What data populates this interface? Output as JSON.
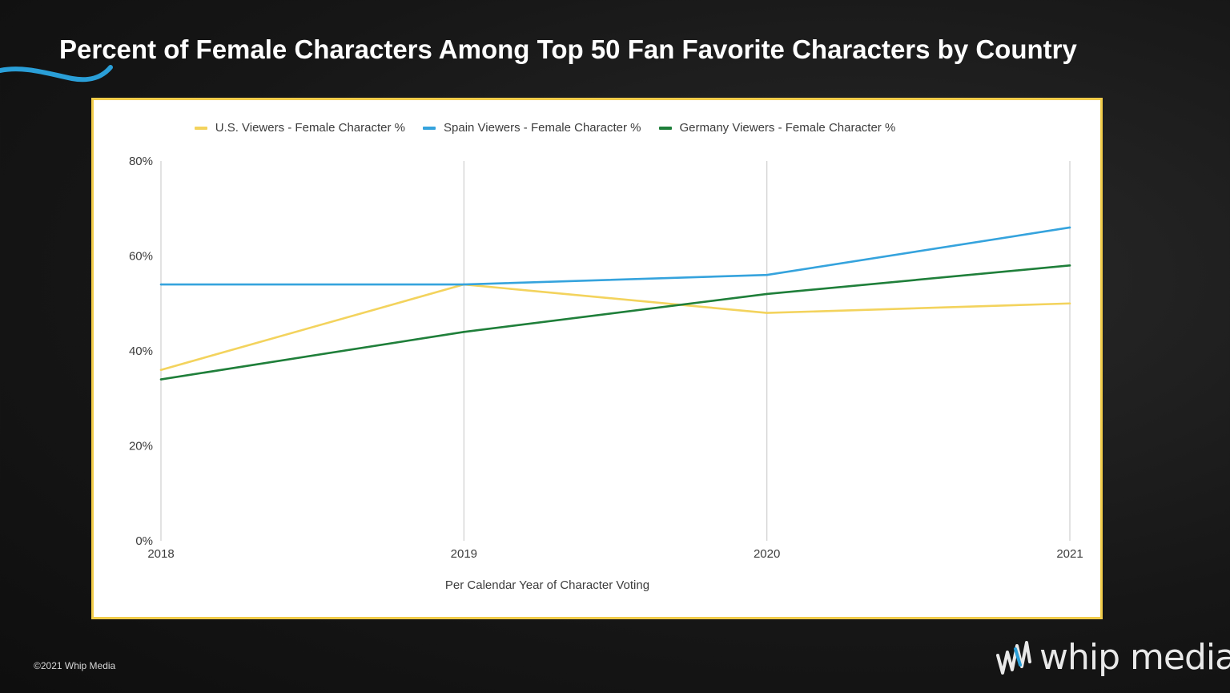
{
  "page": {
    "title": "Percent of Female Characters Among Top 50 Fan Favorite Characters by Country",
    "footer": "©2021 Whip Media",
    "logo_text": "whip media",
    "colors": {
      "frame": "#f1cc4a",
      "swoosh": "#2a9fd8",
      "background": "#161616"
    }
  },
  "chart_data": {
    "type": "line",
    "x": [
      "2018",
      "2019",
      "2020",
      "2021"
    ],
    "xlabel": "Per Calendar Year of Character Voting",
    "ylabel": "",
    "ylim": [
      0,
      80
    ],
    "yticks": [
      "0%",
      "20%",
      "40%",
      "60%",
      "80%"
    ],
    "ytick_values": [
      0,
      20,
      40,
      60,
      80
    ],
    "grid": "vertical",
    "legend_position": "top",
    "series": [
      {
        "name": "U.S. Viewers - Female Character %",
        "color": "#f3d35d",
        "values": [
          36,
          54,
          48,
          50
        ]
      },
      {
        "name": "Spain Viewers - Female Character %",
        "color": "#35a3dd",
        "values": [
          54,
          54,
          56,
          66
        ]
      },
      {
        "name": "Germany Viewers - Female Character %",
        "color": "#1f7f3a",
        "values": [
          34,
          44,
          52,
          58
        ]
      }
    ]
  }
}
